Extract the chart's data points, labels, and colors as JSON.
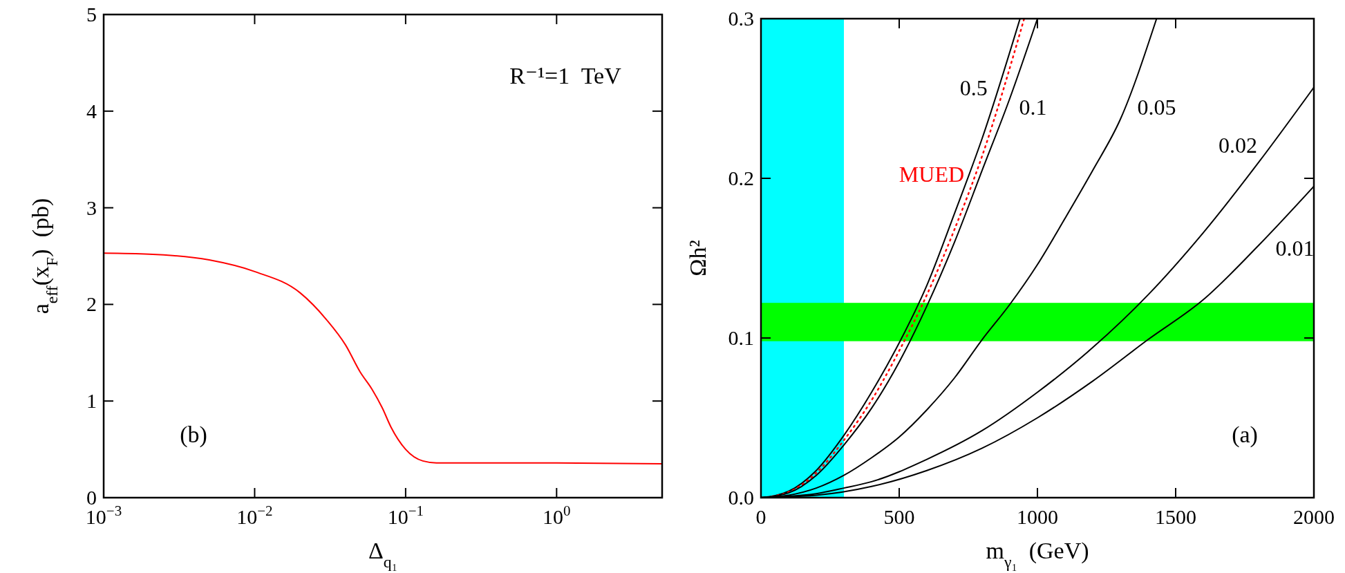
{
  "chart_data": [
    {
      "type": "line",
      "xlabel": "Δ$_{q₁}$",
      "ylabel": "a$_{eff}$(x$_{F}$)  (pb)",
      "log": "x",
      "xlim": [
        0.001,
        5
      ],
      "ylim": [
        0,
        5
      ],
      "xticks": [
        {
          "value": 0.001,
          "label": "10$^{−3}$"
        },
        {
          "value": 0.01,
          "label": "10$^{−2}$"
        },
        {
          "value": 0.1,
          "label": "10$^{−1}$"
        },
        {
          "value": 1,
          "label": "10$^{0}$"
        }
      ],
      "yticks": [
        0,
        1,
        2,
        3,
        4,
        5
      ],
      "grid": false,
      "annotations": [
        "R⁻¹=1  TeV",
        "(b)"
      ],
      "series": [
        {
          "color": "#ff0000",
          "x": [
            0.001,
            0.002,
            0.005,
            0.01,
            0.02,
            0.03,
            0.04,
            0.05,
            0.06,
            0.07,
            0.08,
            0.1,
            0.13,
            0.16,
            0.2,
            1,
            5
          ],
          "values": [
            2.53,
            2.52,
            2.46,
            2.34,
            2.12,
            1.84,
            1.58,
            1.3,
            1.12,
            0.93,
            0.73,
            0.5,
            0.38,
            0.36,
            0.36,
            0.36,
            0.35
          ]
        }
      ]
    },
    {
      "type": "line",
      "xlabel": "m$_{γ₁}$  (GeV)",
      "ylabel": "Ωh²",
      "xlim": [
        0,
        2000
      ],
      "ylim": [
        0,
        0.3
      ],
      "xticks": [
        0,
        500,
        1000,
        1500,
        2000
      ],
      "yticks": [
        {
          "value": 0,
          "label": "0.0"
        },
        0.1,
        0.2,
        0.3
      ],
      "grid": false,
      "annotations": [
        "(a)"
      ],
      "bands": [
        {
          "axis": "x",
          "from": 0,
          "to": 300,
          "color": "#00ffff"
        },
        {
          "axis": "y",
          "from": 0.098,
          "to": 0.122,
          "color": "#00ff00"
        }
      ],
      "series": [
        {
          "name": "0.5",
          "color": "#000000",
          "x": [
            0,
            100,
            200,
            300,
            400,
            500,
            600,
            700,
            800,
            937
          ],
          "values": [
            0,
            0.004,
            0.017,
            0.039,
            0.066,
            0.097,
            0.133,
            0.178,
            0.225,
            0.3
          ]
        },
        {
          "name": "MUED",
          "color": "#ff0000",
          "line_style": "dotted",
          "x": [
            0,
            100,
            200,
            300,
            400,
            500,
            600,
            700,
            800,
            952
          ],
          "values": [
            0,
            0.0035,
            0.0155,
            0.036,
            0.061,
            0.092,
            0.127,
            0.168,
            0.214,
            0.3
          ]
        },
        {
          "name": "0.1",
          "color": "#000000",
          "x": [
            0,
            100,
            200,
            300,
            400,
            500,
            600,
            700,
            800,
            900,
            1000
          ],
          "values": [
            0,
            0.003,
            0.014,
            0.033,
            0.056,
            0.085,
            0.12,
            0.16,
            0.205,
            0.25,
            0.3
          ]
        },
        {
          "name": "0.05",
          "color": "#000000",
          "x": [
            0,
            100,
            200,
            300,
            400,
            500,
            600,
            700,
            800,
            900,
            1000,
            1100,
            1200,
            1300,
            1431
          ],
          "values": [
            0,
            0.0015,
            0.006,
            0.014,
            0.025,
            0.038,
            0.055,
            0.075,
            0.099,
            0.121,
            0.146,
            0.175,
            0.205,
            0.237,
            0.3
          ]
        },
        {
          "name": "0.02",
          "color": "#000000",
          "x": [
            0,
            200,
            300,
            400,
            600,
            800,
            1000,
            1200,
            1400,
            1600,
            1800,
            2000
          ],
          "values": [
            0,
            0.0025,
            0.006,
            0.01,
            0.024,
            0.042,
            0.066,
            0.094,
            0.127,
            0.166,
            0.21,
            0.257
          ]
        },
        {
          "name": "0.01",
          "color": "#000000",
          "x": [
            0,
            200,
            400,
            600,
            800,
            1000,
            1200,
            1400,
            1600,
            1800,
            2000
          ],
          "values": [
            0,
            0.0015,
            0.007,
            0.017,
            0.031,
            0.05,
            0.073,
            0.099,
            0.124,
            0.158,
            0.195
          ]
        }
      ]
    }
  ]
}
